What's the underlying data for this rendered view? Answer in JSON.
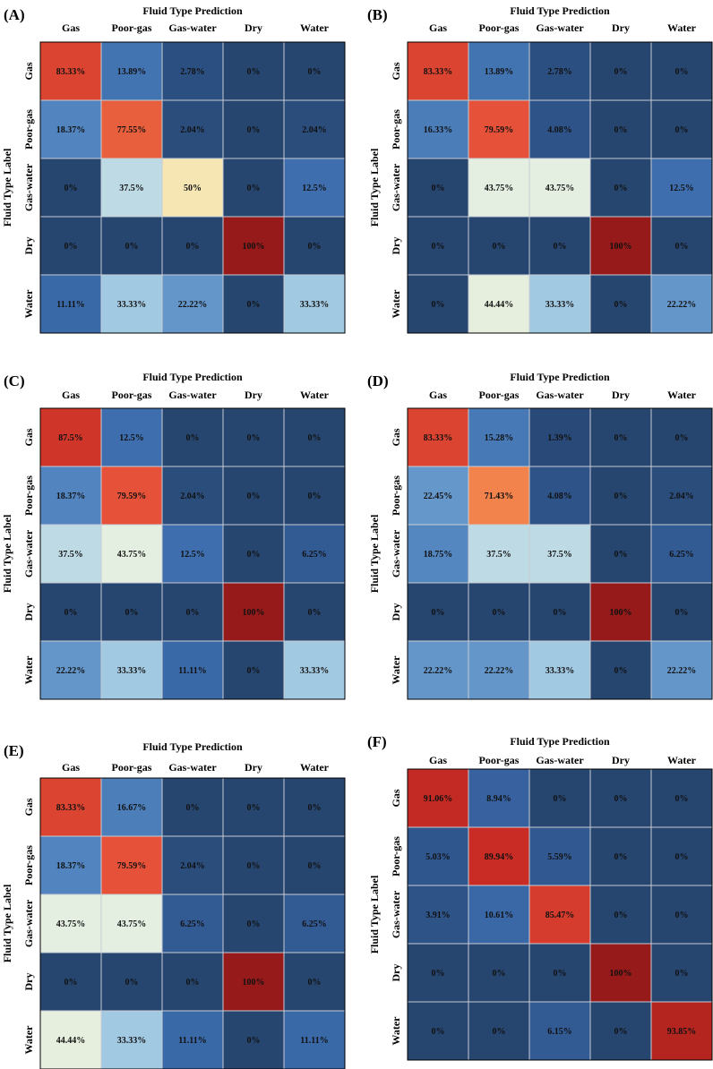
{
  "chart_data": [
    {
      "type": "heatmap",
      "panel": "(A)",
      "title": "Fluid Type Prediction",
      "ylabel": "Fluid Type Label",
      "x_categories": [
        "Gas",
        "Poor-gas",
        "Gas-water",
        "Dry",
        "Water"
      ],
      "y_categories": [
        "Gas",
        "Poor-gas",
        "Gas-water",
        "Dry",
        "Water"
      ],
      "cells": [
        [
          "83.33%",
          "13.89%",
          "2.78%",
          "0%",
          "0%"
        ],
        [
          "18.37%",
          "77.55%",
          "2.04%",
          "0%",
          "2.04%"
        ],
        [
          "0%",
          "37.5%",
          "50%",
          "0%",
          "12.5%"
        ],
        [
          "0%",
          "0%",
          "0%",
          "100%",
          "0%"
        ],
        [
          "11.11%",
          "33.33%",
          "22.22%",
          "0%",
          "33.33%"
        ]
      ]
    },
    {
      "type": "heatmap",
      "panel": "(B)",
      "title": "Fluid Type Prediction",
      "ylabel": "Fluid Type Label",
      "x_categories": [
        "Gas",
        "Poor-gas",
        "Gas-water",
        "Dry",
        "Water"
      ],
      "y_categories": [
        "Gas",
        "Poor-gas",
        "Gas-water",
        "Dry",
        "Water"
      ],
      "cells": [
        [
          "83.33%",
          "13.89%",
          "2.78%",
          "0%",
          "0%"
        ],
        [
          "16.33%",
          "79.59%",
          "4.08%",
          "0%",
          "0%"
        ],
        [
          "0%",
          "43.75%",
          "43.75%",
          "0%",
          "12.5%"
        ],
        [
          "0%",
          "0%",
          "0%",
          "100%",
          "0%"
        ],
        [
          "0%",
          "44.44%",
          "33.33%",
          "0%",
          "22.22%"
        ]
      ]
    },
    {
      "type": "heatmap",
      "panel": "(C)",
      "title": "Fluid Type Prediction",
      "ylabel": "Fluid Type Label",
      "x_categories": [
        "Gas",
        "Poor-gas",
        "Gas-water",
        "Dry",
        "Water"
      ],
      "y_categories": [
        "Gas",
        "Poor-gas",
        "Gas-water",
        "Dry",
        "Water"
      ],
      "cells": [
        [
          "87.5%",
          "12.5%",
          "0%",
          "0%",
          "0%"
        ],
        [
          "18.37%",
          "79.59%",
          "2.04%",
          "0%",
          "0%"
        ],
        [
          "37.5%",
          "43.75%",
          "12.5%",
          "0%",
          "6.25%"
        ],
        [
          "0%",
          "0%",
          "0%",
          "100%",
          "0%"
        ],
        [
          "22.22%",
          "33.33%",
          "11.11%",
          "0%",
          "33.33%"
        ]
      ]
    },
    {
      "type": "heatmap",
      "panel": "(D)",
      "title": "Fluid Type Prediction",
      "ylabel": "Fluid Type Label",
      "x_categories": [
        "Gas",
        "Poor-gas",
        "Gas-water",
        "Dry",
        "Water"
      ],
      "y_categories": [
        "Gas",
        "Poor-gas",
        "Gas-water",
        "Dry",
        "Water"
      ],
      "cells": [
        [
          "83.33%",
          "15.28%",
          "1.39%",
          "0%",
          "0%"
        ],
        [
          "22.45%",
          "71.43%",
          "4.08%",
          "0%",
          "2.04%"
        ],
        [
          "18.75%",
          "37.5%",
          "37.5%",
          "0%",
          "6.25%"
        ],
        [
          "0%",
          "0%",
          "0%",
          "100%",
          "0%"
        ],
        [
          "22.22%",
          "22.22%",
          "33.33%",
          "0%",
          "22.22%"
        ]
      ]
    },
    {
      "type": "heatmap",
      "panel": "(E)",
      "title": "Fluid Type Prediction",
      "ylabel": "Fluid Type Label",
      "x_categories": [
        "Gas",
        "Poor-gas",
        "Gas-water",
        "Dry",
        "Water"
      ],
      "y_categories": [
        "Gas",
        "Poor-gas",
        "Gas-water",
        "Dry",
        "Water"
      ],
      "cells": [
        [
          "83.33%",
          "16.67%",
          "0%",
          "0%",
          "0%"
        ],
        [
          "18.37%",
          "79.59%",
          "2.04%",
          "0%",
          "0%"
        ],
        [
          "43.75%",
          "43.75%",
          "6.25%",
          "0%",
          "6.25%"
        ],
        [
          "0%",
          "0%",
          "0%",
          "100%",
          "0%"
        ],
        [
          "44.44%",
          "33.33%",
          "11.11%",
          "0%",
          "11.11%"
        ]
      ]
    },
    {
      "type": "heatmap",
      "panel": "(F)",
      "title": "Fluid Type Prediction",
      "ylabel": "Fluid Type Label",
      "x_categories": [
        "Gas",
        "Poor-gas",
        "Gas-water",
        "Dry",
        "Water"
      ],
      "y_categories": [
        "Gas",
        "Poor-gas",
        "Gas-water",
        "Dry",
        "Water"
      ],
      "cells": [
        [
          "91.06%",
          "8.94%",
          "0%",
          "0%",
          "0%"
        ],
        [
          "5.03%",
          "89.94%",
          "5.59%",
          "0%",
          "0%"
        ],
        [
          "3.91%",
          "10.61%",
          "85.47%",
          "0%",
          "0%"
        ],
        [
          "0%",
          "0%",
          "0%",
          "100%",
          "0%"
        ],
        [
          "0%",
          "0%",
          "6.15%",
          "0%",
          "93.85%"
        ]
      ]
    }
  ]
}
